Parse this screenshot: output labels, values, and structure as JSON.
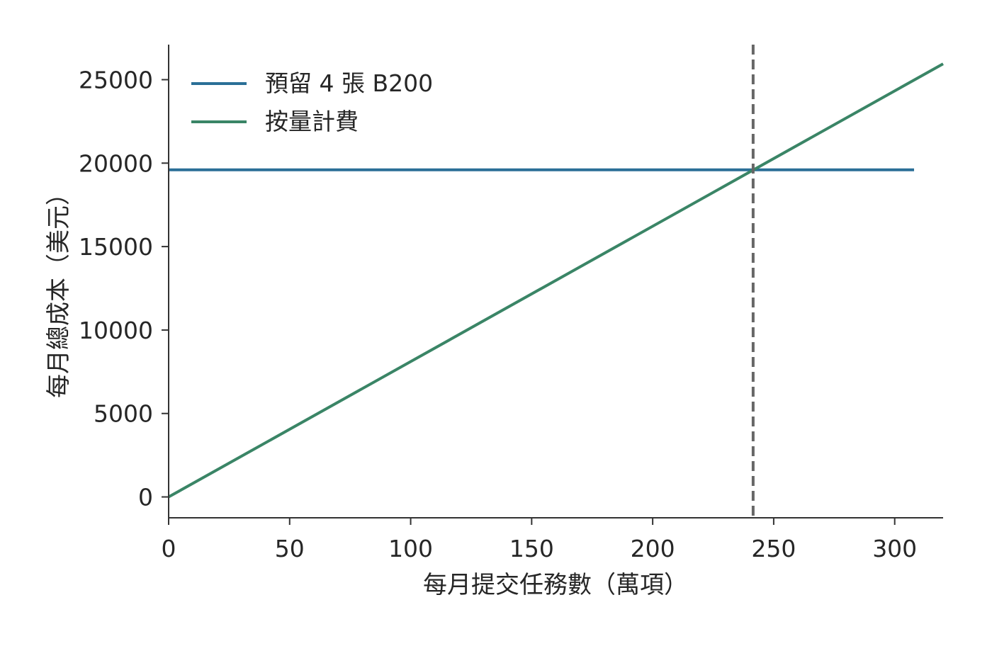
{
  "chart_data": {
    "type": "line",
    "title": "",
    "xlabel": "每月提交任務數（萬項）",
    "ylabel": "每月總成本（美元）",
    "xlim": [
      0,
      320
    ],
    "ylim": [
      -1250,
      27100
    ],
    "x_ticks": [
      "0",
      "50",
      "100",
      "150",
      "200",
      "250",
      "300"
    ],
    "y_ticks": [
      "0",
      "5000",
      "10000",
      "15000",
      "20000",
      "25000"
    ],
    "grid": false,
    "legend_position": "top-left",
    "series": [
      {
        "name": "預留 4 張 B200",
        "color": "#2a6f97",
        "style": "solid",
        "x": [
          0,
          308
        ],
        "y": [
          19600,
          19600
        ]
      },
      {
        "name": "按量計費",
        "color": "#3a8566",
        "style": "solid",
        "x": [
          0,
          320
        ],
        "y": [
          0,
          25950
        ]
      }
    ],
    "reference_lines": [
      {
        "orientation": "vertical",
        "x": 241.5,
        "style": "dashed",
        "color": "#666666"
      }
    ]
  }
}
